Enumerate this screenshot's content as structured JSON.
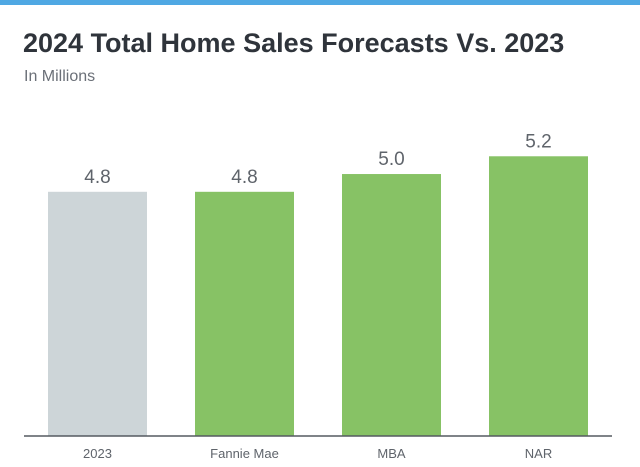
{
  "header": {
    "title": "2024 Total Home Sales Forecasts Vs. 2023",
    "subtitle": "In Millions"
  },
  "colors": {
    "accent_bar": "#4fa8e3",
    "baseline_bar": "#cdd5d8",
    "forecast_bar": "#87c265",
    "axis": "#555a60",
    "text": "#5f646b"
  },
  "chart_data": {
    "type": "bar",
    "title": "2024 Total Home Sales Forecasts Vs. 2023",
    "subtitle": "In Millions",
    "categories": [
      "2023",
      "Fannie Mae",
      "MBA",
      "NAR"
    ],
    "values": [
      4.8,
      4.8,
      5.0,
      5.2
    ],
    "value_labels": [
      "4.8",
      "4.8",
      "5.0",
      "5.2"
    ],
    "bar_colors": [
      "#cdd5d8",
      "#87c265",
      "#87c265",
      "#87c265"
    ],
    "xlabel": "",
    "ylabel": "",
    "ylim": [
      2.05,
      5.8
    ],
    "grid": false,
    "legend": "none"
  }
}
